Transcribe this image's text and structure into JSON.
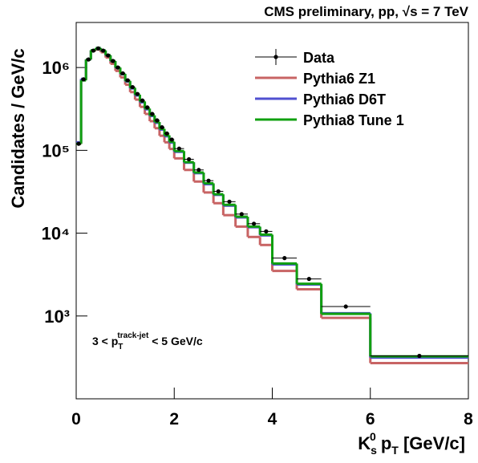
{
  "chart_data": {
    "type": "histogram",
    "title": "CMS preliminary, pp, √s = 7 TeV",
    "x_label": [
      "K",
      "s",
      "0",
      " p",
      "T",
      " [GeV/c]"
    ],
    "y_label": "Candidates / GeV/c",
    "annotation": [
      "3 < p",
      "T",
      "track-jet",
      " < 5 GeV/c"
    ],
    "log_y": true,
    "legend": "top-right",
    "bins": [
      0,
      0.1,
      0.2,
      0.3,
      0.4,
      0.5,
      0.6,
      0.7,
      0.8,
      0.9,
      1.0,
      1.1,
      1.2,
      1.3,
      1.4,
      1.5,
      1.6,
      1.7,
      1.8,
      1.9,
      2.0,
      2.2,
      2.4,
      2.6,
      2.8,
      3.0,
      3.25,
      3.5,
      3.75,
      4.0,
      4.5,
      5.0,
      6.0,
      8.0
    ],
    "series": [
      {
        "name": "Data",
        "color": "#000000",
        "style": "points",
        "values": [
          120000,
          720000,
          1250000,
          1600000,
          1700000,
          1600000,
          1400000,
          1200000,
          1000000,
          850000,
          700000,
          580000,
          480000,
          400000,
          330000,
          275000,
          230000,
          190000,
          160000,
          135000,
          105000,
          78000,
          58000,
          43000,
          32000,
          24000,
          17000,
          13000,
          10500,
          5000,
          2800,
          1300,
          330
        ]
      },
      {
        "name": "Pythia6 Z1",
        "color": "#c86464",
        "style": "step",
        "values": [
          120000,
          720000,
          1250000,
          1600000,
          1650000,
          1530000,
          1320000,
          1110000,
          910000,
          760000,
          620000,
          505000,
          410000,
          335000,
          275000,
          225000,
          185000,
          150000,
          125000,
          104000,
          80000,
          58000,
          42000,
          31000,
          23000,
          16500,
          12000,
          9000,
          7200,
          3500,
          2100,
          950,
          270
        ]
      },
      {
        "name": "Pythia6 D6T",
        "color": "#5050d0",
        "style": "step",
        "values": [
          125000,
          730000,
          1250000,
          1620000,
          1720000,
          1600000,
          1400000,
          1190000,
          990000,
          830000,
          680000,
          560000,
          460000,
          380000,
          313000,
          260000,
          215000,
          178000,
          148000,
          124000,
          96000,
          71000,
          53000,
          39000,
          29000,
          21500,
          15500,
          11800,
          9400,
          4200,
          2400,
          1080,
          315
        ]
      },
      {
        "name": "Pythia8 Tune 1",
        "color": "#10a010",
        "style": "step",
        "values": [
          120000,
          700000,
          1250000,
          1620000,
          1720000,
          1610000,
          1410000,
          1200000,
          1000000,
          840000,
          690000,
          570000,
          470000,
          390000,
          320000,
          265000,
          220000,
          182000,
          152000,
          127000,
          98000,
          72000,
          54000,
          40000,
          29500,
          22000,
          15800,
          12000,
          9600,
          4300,
          2450,
          1060,
          325
        ]
      }
    ],
    "xlim": [
      0,
      8
    ],
    "xticks": [
      0,
      2,
      4,
      6,
      8
    ],
    "ylim": [
      100,
      3500000
    ],
    "yticks": [
      {
        "value": 1000,
        "label": "10³"
      },
      {
        "value": 10000,
        "label": "10⁴"
      },
      {
        "value": 100000,
        "label": "10⁵"
      },
      {
        "value": 1000000,
        "label": "10⁶"
      }
    ]
  }
}
